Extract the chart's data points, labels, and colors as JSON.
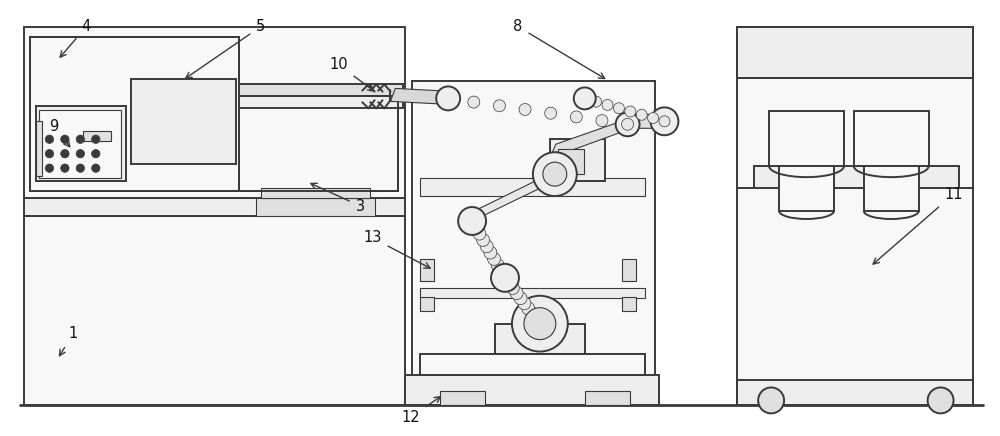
{
  "bg_color": "#ffffff",
  "line_color": "#3a3a3a",
  "line_width": 1.4,
  "thin_line": 0.8,
  "label_color": "#111111",
  "label_fontsize": 10.5,
  "fill_light": "#f8f8f8",
  "fill_mid": "#eeeeee",
  "fill_dark": "#e0e0e0",
  "fill_robot": "#d8d8d8"
}
